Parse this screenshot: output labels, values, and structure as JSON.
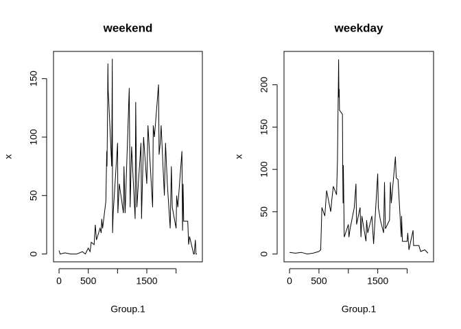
{
  "chart_data": [
    {
      "type": "line",
      "title": "weekend",
      "xlabel": "Group.1",
      "ylabel": "x",
      "color": "#000000",
      "x": [
        0,
        20,
        100,
        200,
        300,
        400,
        450,
        500,
        530,
        550,
        600,
        620,
        640,
        700,
        720,
        730,
        745,
        800,
        815,
        820,
        830,
        835,
        840,
        850,
        900,
        910,
        915,
        925,
        1000,
        1005,
        1030,
        1100,
        1110,
        1130,
        1200,
        1215,
        1240,
        1300,
        1310,
        1330,
        1400,
        1410,
        1445,
        1500,
        1520,
        1600,
        1610,
        1630,
        1700,
        1710,
        1730,
        1745,
        1800,
        1820,
        1850,
        1900,
        1920,
        1935,
        2000,
        2010,
        2030,
        2100,
        2110,
        2120,
        2130,
        2200,
        2215,
        2230,
        2300,
        2310,
        2330,
        2340,
        2355
      ],
      "values": [
        3,
        0,
        1,
        0,
        0,
        2,
        0,
        5,
        2,
        10,
        8,
        25,
        12,
        22,
        18,
        30,
        22,
        45,
        88,
        75,
        130,
        163,
        140,
        130,
        75,
        167,
        18,
        35,
        95,
        35,
        60,
        35,
        75,
        35,
        142,
        40,
        92,
        30,
        130,
        40,
        95,
        30,
        100,
        60,
        110,
        40,
        110,
        100,
        145,
        85,
        95,
        110,
        50,
        95,
        60,
        22,
        75,
        40,
        22,
        50,
        40,
        88,
        20,
        60,
        28,
        28,
        8,
        15,
        0,
        0,
        12,
        0,
        0
      ],
      "xlim": [
        -94.2,
        2449.2
      ],
      "ylim": [
        -6.7,
        173.3
      ],
      "xticks": [
        0,
        500,
        {
          "value": 1000,
          "label": null
        },
        1500,
        {
          "value": 2000,
          "label": null
        }
      ],
      "yticks": [
        0,
        50,
        100,
        150
      ]
    },
    {
      "type": "line",
      "title": "weekday",
      "xlabel": "Group.1",
      "ylabel": "x",
      "color": "#000000",
      "x": [
        0,
        100,
        200,
        300,
        400,
        500,
        530,
        550,
        600,
        630,
        700,
        720,
        745,
        800,
        815,
        830,
        835,
        840,
        845,
        850,
        900,
        905,
        910,
        915,
        930,
        1000,
        1010,
        1030,
        1100,
        1130,
        1140,
        1200,
        1215,
        1230,
        1300,
        1310,
        1330,
        1400,
        1430,
        1500,
        1510,
        1545,
        1600,
        1615,
        1630,
        1700,
        1715,
        1730,
        1800,
        1815,
        1845,
        1900,
        1905,
        1920,
        2000,
        2010,
        2030,
        2100,
        2110,
        2200,
        2230,
        2300,
        2355
      ],
      "values": [
        2,
        1,
        2,
        0,
        1,
        3,
        5,
        55,
        45,
        75,
        50,
        65,
        80,
        70,
        110,
        200,
        230,
        185,
        195,
        170,
        165,
        100,
        60,
        105,
        20,
        35,
        20,
        30,
        55,
        83,
        35,
        55,
        20,
        45,
        15,
        40,
        25,
        45,
        12,
        95,
        55,
        40,
        25,
        85,
        30,
        40,
        85,
        60,
        115,
        90,
        88,
        20,
        45,
        15,
        15,
        25,
        5,
        28,
        10,
        10,
        3,
        5,
        1
      ],
      "xlim": [
        -94.2,
        2449.2
      ],
      "ylim": [
        -9.2,
        239.4
      ],
      "xticks": [
        0,
        500,
        {
          "value": 1000,
          "label": null
        },
        1500,
        {
          "value": 2000,
          "label": null
        }
      ],
      "yticks": [
        0,
        50,
        100,
        150,
        200
      ]
    }
  ]
}
